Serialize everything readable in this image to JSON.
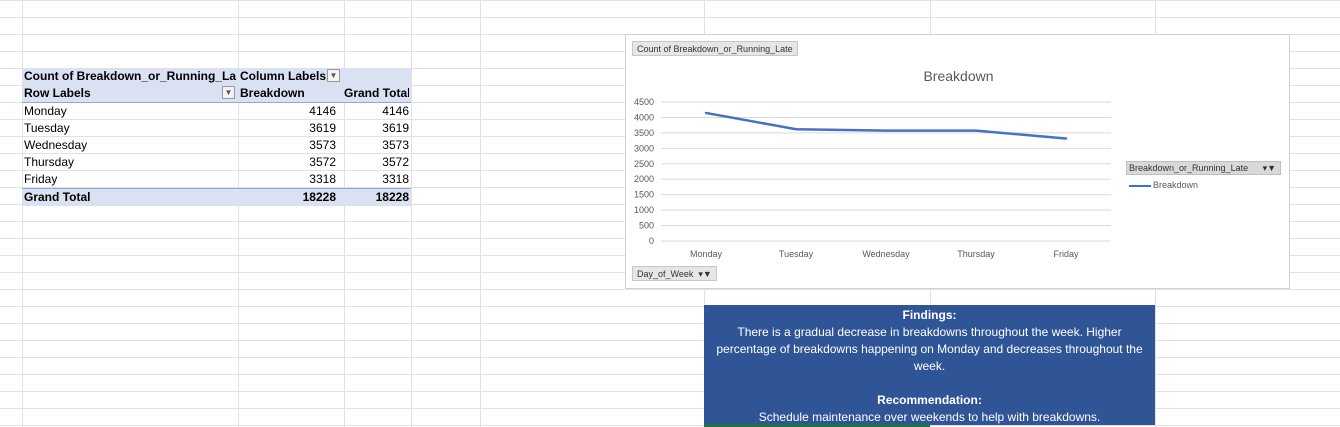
{
  "pivot": {
    "data_field": "Count of Breakdown_or_Running_Late",
    "column_labels": "Column Labels",
    "row_labels": "Row Labels",
    "col_breakdown": "Breakdown",
    "col_grand_total": "Grand Total",
    "rows": [
      {
        "label": "Monday",
        "breakdown": "4146",
        "total": "4146"
      },
      {
        "label": "Tuesday",
        "breakdown": "3619",
        "total": "3619"
      },
      {
        "label": "Wednesday",
        "breakdown": "3573",
        "total": "3573"
      },
      {
        "label": "Thursday",
        "breakdown": "3572",
        "total": "3572"
      },
      {
        "label": "Friday",
        "breakdown": "3318",
        "total": "3318"
      }
    ],
    "grand_total": {
      "label": "Grand Total",
      "breakdown": "18228",
      "total": "18228"
    }
  },
  "chart": {
    "value_field_button": "Count of Breakdown_or_Running_Late",
    "axis_field_button": "Day_of_Week",
    "legend_field_button": "Breakdown_or_Running_Late",
    "line_color": "#4472c4"
  },
  "chart_data": {
    "type": "line",
    "title": "Breakdown",
    "categories": [
      "Monday",
      "Tuesday",
      "Wednesday",
      "Thursday",
      "Friday"
    ],
    "series": [
      {
        "name": "Breakdown",
        "values": [
          4146,
          3619,
          3573,
          3572,
          3318
        ]
      }
    ],
    "yticks": [
      "0",
      "500",
      "1000",
      "1500",
      "2000",
      "2500",
      "3000",
      "3500",
      "4000",
      "4500"
    ],
    "ylim": [
      0,
      4500
    ],
    "grid": true,
    "legend": "right"
  },
  "findings": {
    "title": "Findings:",
    "text": "There is a gradual decrease in breakdowns throughout the week. Higher percentage of breakdowns happening on Monday and decreases throughout the week.",
    "rec_title": "Recommendation:",
    "rec_text": "Schedule maintenance over weekends to help with breakdowns."
  }
}
